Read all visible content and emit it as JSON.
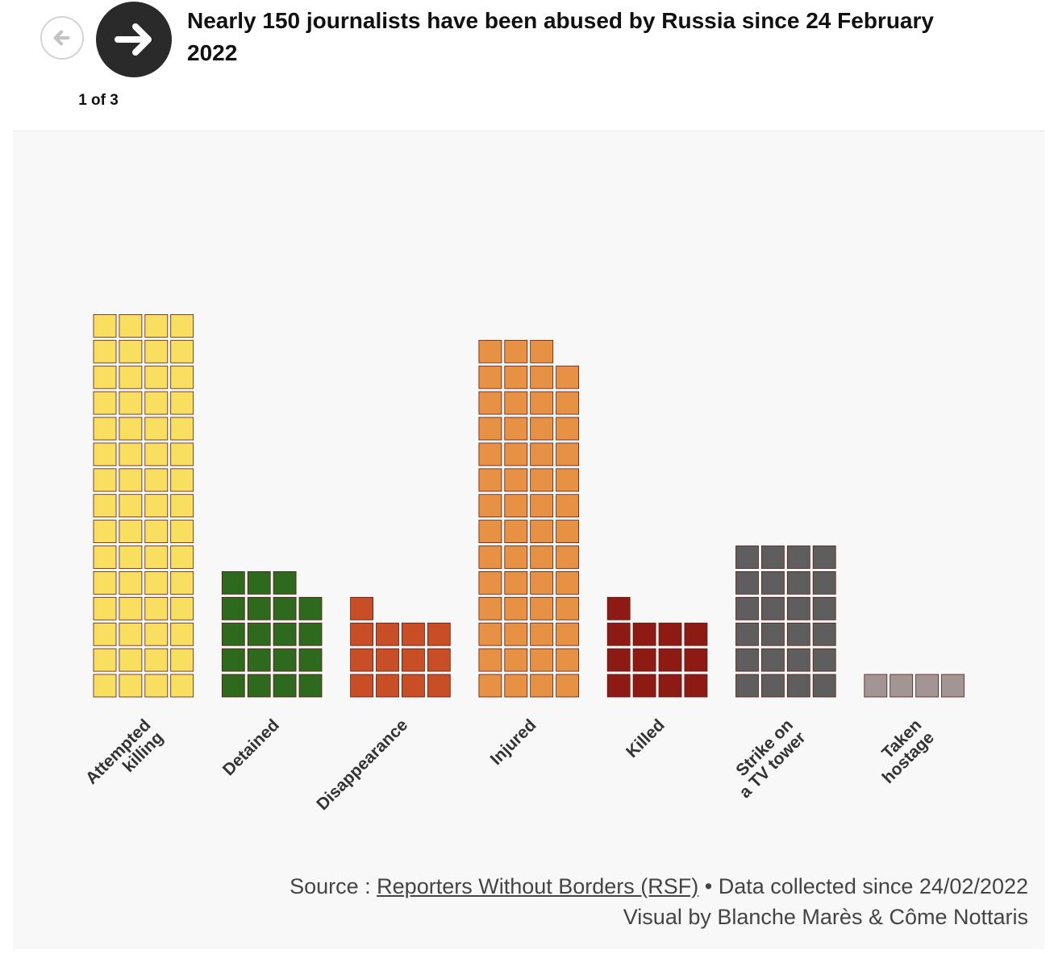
{
  "nav": {
    "prev_icon": "arrow-left-icon",
    "next_icon": "arrow-right-icon",
    "counter": "1 of 3"
  },
  "title": "Nearly 150 journalists have been abused by Russia since 24 February 2022",
  "chart_data": {
    "type": "bar",
    "subtype": "unit-waffle",
    "title": "Nearly 150 journalists have been abused by Russia since 24 February 2022",
    "categories": [
      "Attempted killing",
      "Detained",
      "Disappearance",
      "Injured",
      "Killed",
      "Strike on a TV tower",
      "Taken hostage"
    ],
    "category_label_lines": [
      [
        "Attempted",
        "killing"
      ],
      [
        "Detained"
      ],
      [
        "Disappearance"
      ],
      [
        "Injured"
      ],
      [
        "Killed"
      ],
      [
        "Strike on",
        "a TV tower"
      ],
      [
        "Taken",
        "hostage"
      ]
    ],
    "values": [
      60,
      19,
      13,
      55,
      13,
      24,
      4
    ],
    "units_per_row": 4,
    "colors": [
      "#f8df5f",
      "#2d6a1e",
      "#c84e25",
      "#e69144",
      "#8e1a14",
      "#5e5e5e",
      "#a39594"
    ],
    "legend": "none",
    "grid": false
  },
  "footer": {
    "source_prefix": "Source : ",
    "source_link": "Reporters Without Borders (RSF)",
    "source_suffix": " • Data collected since 24/02/2022",
    "credit": "Visual by Blanche Marès & Côme Nottaris"
  }
}
